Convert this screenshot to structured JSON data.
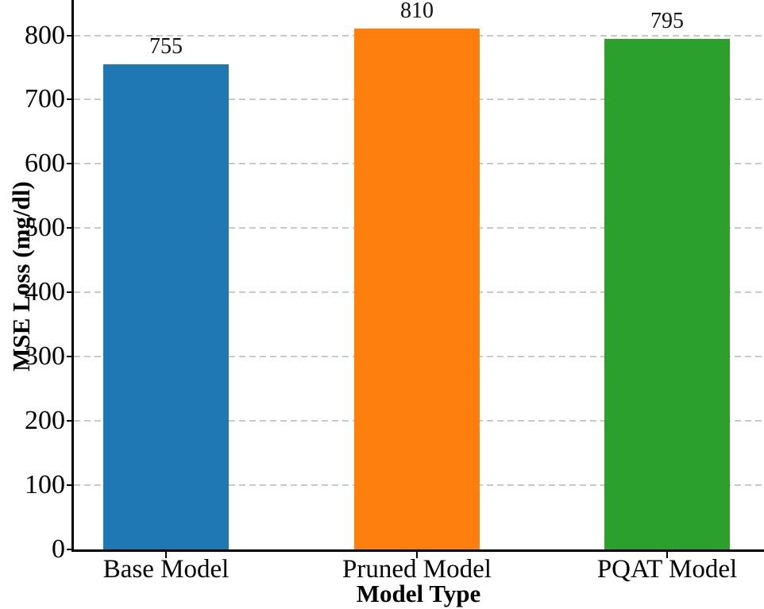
{
  "chart_data": {
    "type": "bar",
    "categories": [
      "Base Model",
      "Pruned Model",
      "PQAT Model"
    ],
    "values": [
      755,
      810,
      795
    ],
    "bar_labels": [
      "755",
      "810",
      "795"
    ],
    "bar_colors": [
      "#1f77b4",
      "#ff7f0e",
      "#2ca02c"
    ],
    "xlabel": "Model Type",
    "ylabel": "MSE Loss (mg/dl)",
    "yticks": [
      0,
      100,
      200,
      300,
      400,
      500,
      600,
      700,
      800
    ],
    "ylim": [
      0,
      855
    ],
    "grid": "horizontal-dashed",
    "gridline_color": "#c9c9c9",
    "axis_color": "#000000",
    "background_color": "#ffffff",
    "legend": null
  }
}
